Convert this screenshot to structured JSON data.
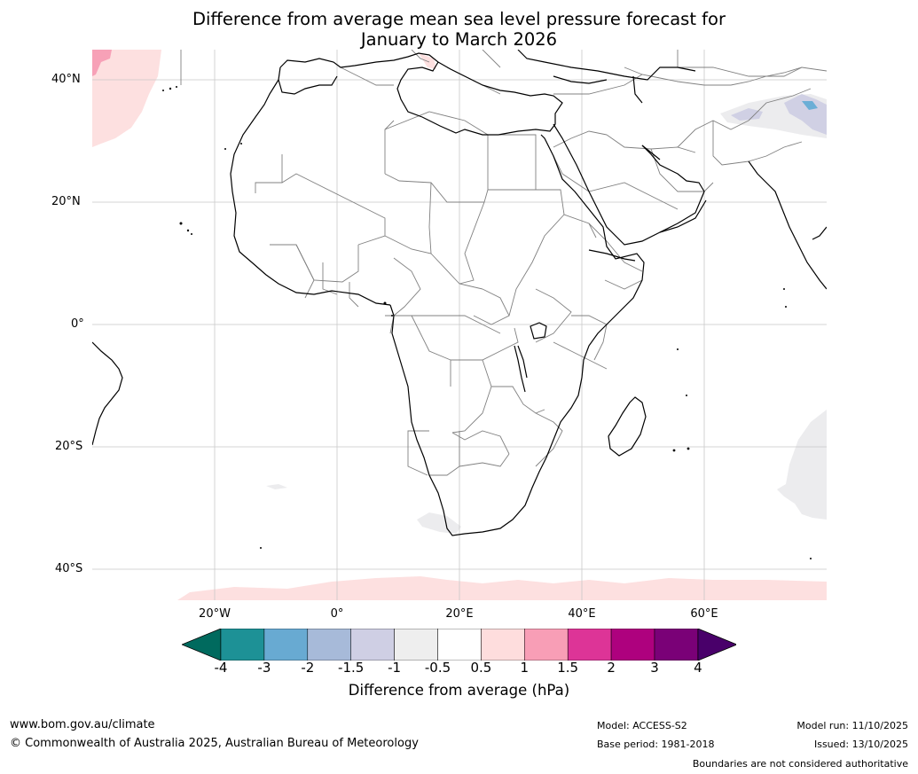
{
  "title_line1": "Difference from average mean sea level pressure forecast for",
  "title_line2": "January to March 2026",
  "map": {
    "lat_labels": [
      "40°N",
      "20°N",
      "0°",
      "20°S",
      "40°S"
    ],
    "lon_labels": [
      "20°W",
      "0°",
      "20°E",
      "40°E",
      "60°E"
    ],
    "colors": {
      "land_outline": "#000000",
      "border": "#808080",
      "grid": "#c8c8c8",
      "pink_light": "#fde0e0",
      "pink": "#f7a1b7",
      "grey_light": "#ececee",
      "lavender": "#d0d0e4",
      "blue": "#6baed6"
    }
  },
  "colorbar": {
    "ticks": [
      "-4",
      "-3",
      "-2",
      "-1.5",
      "-1",
      "-0.5",
      "0.5",
      "1",
      "1.5",
      "2",
      "3",
      "4"
    ],
    "colors": [
      "#006a5e",
      "#1d9196",
      "#68aad2",
      "#a7bad9",
      "#cfcfe4",
      "#eeeeee",
      "#ffffff",
      "#fedddd",
      "#f89eb6",
      "#dd3497",
      "#ae017e",
      "#7a0177",
      "#49006a"
    ],
    "label": "Difference from average (hPa)"
  },
  "footer": {
    "url": "www.bom.gov.au/climate",
    "copyright": "© Commonwealth of Australia 2025, Australian Bureau of Meteorology",
    "model": "Model: ACCESS-S2",
    "base_period": "Base period: 1981-2018",
    "model_run": "Model run: 11/10/2025",
    "issued": "Issued: 13/10/2025",
    "boundaries": "Boundaries are not considered authoritative"
  }
}
